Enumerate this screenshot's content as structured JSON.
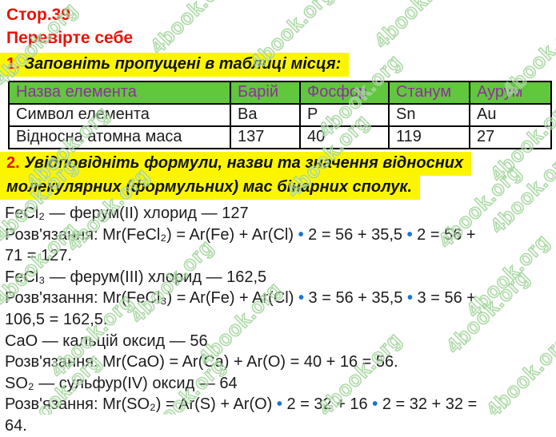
{
  "page": {
    "title": "Стор.39",
    "subtitle": "Перевірте себе"
  },
  "task1": {
    "number": "1.",
    "text": "Заповніть пропущені в таблиці місця:"
  },
  "table": {
    "header": [
      "Назва елемента",
      "Барій",
      "Фосфор",
      "Станум",
      "Аурум"
    ],
    "rows": [
      [
        "Символ елемента",
        "Ba",
        "P",
        "Sn",
        "Au"
      ],
      [
        "Відносна атомна маса",
        "137",
        "40",
        "119",
        "27"
      ]
    ]
  },
  "task2": {
    "number": "2.",
    "line1": "Увідповідніть формули, назви та значення відносних",
    "line2": "молекулярних (формульних) мас бінарних сполук."
  },
  "solution": {
    "lines": [
      {
        "runs": [
          {
            "t": "FeCl₂ — ферум(II) хлорид — 127"
          }
        ]
      },
      {
        "runs": [
          {
            "t": "Розв'язання: Mr(FeCl₂) = Ar(Fe) + Ar(Cl) "
          },
          {
            "t": "•",
            "c": "dot"
          },
          {
            "t": " 2 = 56 + 35,5 "
          },
          {
            "t": "•",
            "c": "dot"
          },
          {
            "t": " 2 = 56 +"
          }
        ]
      },
      {
        "runs": [
          {
            "t": "71 = 127."
          }
        ]
      },
      {
        "runs": [
          {
            "t": "FeCl₃ — ферум(III) хлорид — 162,5"
          }
        ]
      },
      {
        "runs": [
          {
            "t": "Розв'язання: Mr(FeCl₃) = Ar(Fe) + Ar(Cl) "
          },
          {
            "t": "•",
            "c": "dot"
          },
          {
            "t": " 3 = 56 + 35,5 "
          },
          {
            "t": "•",
            "c": "dot"
          },
          {
            "t": " 3 = 56 +"
          }
        ]
      },
      {
        "runs": [
          {
            "t": "106,5 = 162,5."
          }
        ]
      },
      {
        "runs": [
          {
            "t": "CaO — кальцій оксид — 56"
          }
        ]
      },
      {
        "runs": [
          {
            "t": "Розв'язання: Mr(CaO) = Ar(Ca) + Ar(O) = 40 + 16 = 56."
          }
        ]
      },
      {
        "runs": [
          {
            "t": "SO₂ — сульфур(IV) оксид — 64"
          }
        ]
      },
      {
        "runs": [
          {
            "t": "Розв'язання: Mr(SO₂) = Ar(S) + Ar(O) "
          },
          {
            "t": "•",
            "c": "dot"
          },
          {
            "t": " 2 = 32 + 16 "
          },
          {
            "t": "•",
            "c": "dot"
          },
          {
            "t": " 2 = 32 + 32 ="
          }
        ]
      },
      {
        "runs": [
          {
            "t": "64."
          }
        ]
      }
    ]
  },
  "watermark": {
    "text": "4book.org"
  },
  "colors": {
    "heading_red": "#e81309",
    "highlight_yellow": "#fbf600",
    "table_header_green": "#61c73c",
    "table_header_purple": "#8e2f9e",
    "dot_blue": "#1b74cc",
    "watermark_green": "#a2d49c"
  }
}
